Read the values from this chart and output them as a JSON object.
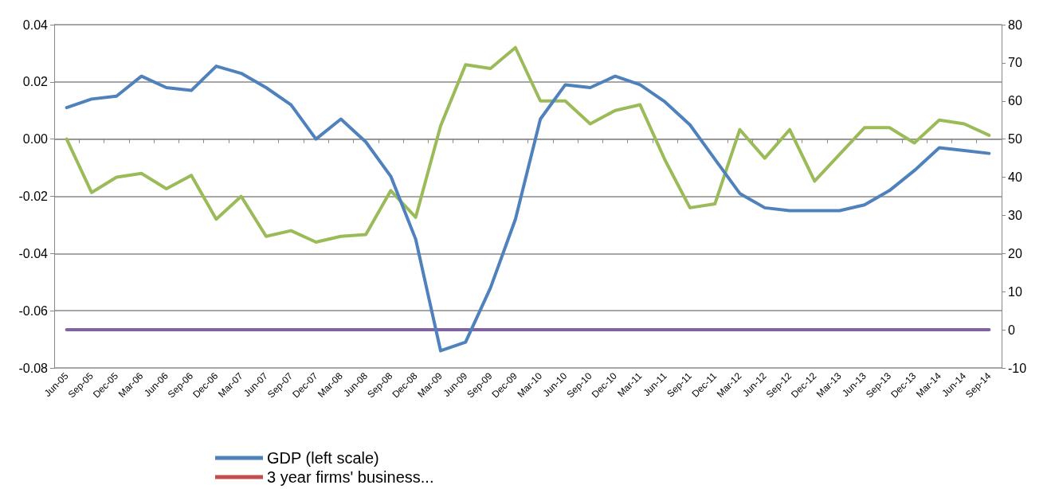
{
  "chart_data": {
    "type": "line",
    "categories": [
      "Jun-05",
      "Sep-05",
      "Dec-05",
      "Mar-06",
      "Jun-06",
      "Sep-06",
      "Dec-06",
      "Mar-07",
      "Jun-07",
      "Sep-07",
      "Dec-07",
      "Mar-08",
      "Jun-08",
      "Sep-08",
      "Dec-08",
      "Mar-09",
      "Jun-09",
      "Sep-09",
      "Dec-09",
      "Mar-10",
      "Jun-10",
      "Sep-10",
      "Dec-10",
      "Mar-11",
      "Jun-11",
      "Sep-11",
      "Dec-11",
      "Mar-12",
      "Jun-12",
      "Sep-12",
      "Dec-12",
      "Mar-13",
      "Jun-13",
      "Sep-13",
      "Dec-13",
      "Mar-14",
      "Jun-14",
      "Sep-14"
    ],
    "series": [
      {
        "name": "GDP (left scale)",
        "color": "#4f81bd",
        "values": [
          0.011,
          0.014,
          0.015,
          0.022,
          0.018,
          0.017,
          0.0255,
          0.023,
          0.018,
          0.012,
          0.0,
          0.007,
          -0.001,
          -0.013,
          -0.035,
          -0.074,
          -0.071,
          -0.052,
          -0.028,
          0.007,
          0.019,
          0.018,
          0.022,
          0.019,
          0.013,
          0.005,
          -0.007,
          -0.019,
          -0.024,
          -0.025,
          -0.025,
          -0.025,
          -0.023,
          -0.018,
          -0.011,
          -0.003,
          -0.004,
          -0.005
        ]
      },
      {
        "name": "3 year firms' business...",
        "color": "#c0504d",
        "axis": "y2",
        "values": [
          null,
          null,
          null,
          null,
          null,
          null,
          null,
          null,
          null,
          null,
          null,
          null,
          null,
          null,
          null,
          null,
          null,
          null,
          null,
          null,
          null,
          null,
          null,
          null,
          null,
          null,
          null,
          null,
          null,
          null,
          null,
          null,
          null,
          null,
          null,
          null,
          null,
          null
        ]
      },
      {
        "color": "#9bbb59",
        "axis": "y2",
        "values": [
          50,
          36,
          40,
          41,
          37,
          40.5,
          29,
          35,
          24.5,
          26,
          23,
          24.5,
          25,
          36.5,
          29.5,
          53.5,
          69.5,
          68.5,
          74,
          60,
          60,
          54,
          57.5,
          59,
          44.5,
          32,
          33,
          52.5,
          45,
          52.5,
          39,
          46,
          53,
          53,
          49,
          55,
          54,
          51
        ]
      },
      {
        "color": "#8064a2",
        "axis": "y2",
        "values": [
          0,
          0,
          0,
          0,
          0,
          0,
          0,
          0,
          0,
          0,
          0,
          0,
          0,
          0,
          0,
          0,
          0,
          0,
          0,
          0,
          0,
          0,
          0,
          0,
          0,
          0,
          0,
          0,
          0,
          0,
          0,
          0,
          0,
          0,
          0,
          0,
          0,
          0
        ]
      }
    ],
    "ylim": [
      -0.08,
      0.04
    ],
    "yticks": [
      -0.08,
      -0.06,
      -0.04,
      -0.02,
      {
        "value": 0,
        "label": "0.00"
      },
      0.02,
      0.04
    ],
    "y2lim": [
      -10,
      80
    ],
    "y2ticks": [
      -10,
      0,
      10,
      20,
      30,
      40,
      50,
      60,
      70,
      80
    ],
    "grid": "y",
    "legend": "bottom left",
    "marker": "none",
    "line_style": "solid"
  }
}
